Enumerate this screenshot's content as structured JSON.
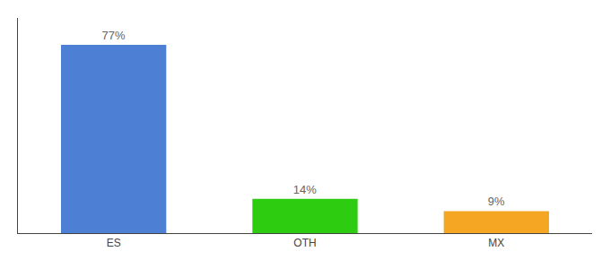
{
  "chart_data": {
    "type": "bar",
    "categories": [
      "ES",
      "OTH",
      "MX"
    ],
    "values": [
      77,
      14,
      9
    ],
    "value_labels": [
      "77%",
      "14%",
      "9%"
    ],
    "colors": [
      "#4d7fd4",
      "#2ecc11",
      "#f5a623"
    ],
    "ylim": [
      0,
      88
    ],
    "data_labels": true,
    "tick_labels": "x",
    "grid": false
  }
}
